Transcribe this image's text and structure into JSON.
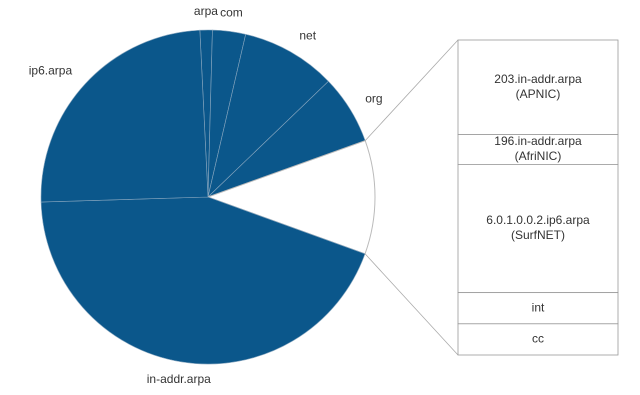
{
  "chart_data": {
    "type": "pie-of-bar",
    "categories": [
      "arpa",
      "com",
      "net",
      "org",
      null,
      "in-addr.arpa",
      "ip6.arpa"
    ],
    "values": [
      1.2,
      3.2,
      9.2,
      6.7,
      11,
      44,
      24.7
    ],
    "colors": [
      "#0b578b",
      "#0b578b",
      "#0b578b",
      "#0b578b",
      "#ffffff",
      "#0b578b",
      "#0b578b"
    ],
    "breakdown": {
      "categories": [
        [
          "203.in-addr.arpa",
          "(APNIC)"
        ],
        [
          "196.in-addr.arpa",
          "(AfriNIC)"
        ],
        [
          "6.0.1.0.0.2.ip6.arpa",
          "(SurfNET)"
        ],
        [
          "int"
        ],
        [
          "cc"
        ]
      ],
      "values": [
        30,
        9.5,
        40.7,
        9.9,
        9.9
      ],
      "color": "#ffffff"
    }
  }
}
